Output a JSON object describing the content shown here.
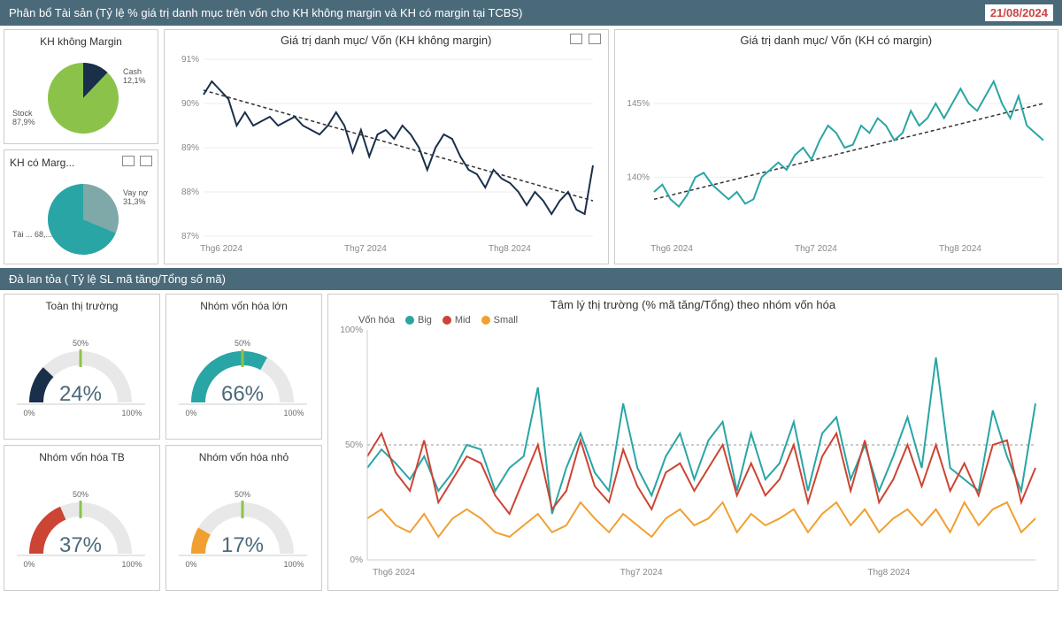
{
  "header1": {
    "title": "Phân bổ Tài sản (Tỷ lệ % giá trị danh mục trên vốn cho KH không margin và KH có margin tại TCBS)",
    "date": "21/08/2024"
  },
  "header2": {
    "title": "Đà lan tỏa ( Tỷ lệ SL mã tăng/Tổng số mã)"
  },
  "pie1": {
    "title": "KH không Margin",
    "slices": [
      {
        "label": "Cash",
        "value": 12.1,
        "color": "#1a2f4a",
        "labelText": "Cash\n12,1%"
      },
      {
        "label": "Stock",
        "value": 87.9,
        "color": "#8bc34a",
        "labelText": "Stock\n87,9%"
      }
    ]
  },
  "pie2": {
    "title": "KH có Marg...",
    "slices": [
      {
        "label": "Vay nợ",
        "value": 31.3,
        "color": "#7fa8a8",
        "labelText": "Vay nợ\n31,3%"
      },
      {
        "label": "Tài ...",
        "value": 68.7,
        "color": "#2aa5a5",
        "labelText": "Tài ... 68,..."
      }
    ]
  },
  "line1": {
    "title": "Giá trị danh mục/ Vốn (KH không margin)",
    "color": "#1a2f4a",
    "trend_color": "#333",
    "ylim": [
      87,
      91
    ],
    "yticks": [
      "87%",
      "88%",
      "89%",
      "90%",
      "91%"
    ],
    "xticks": [
      "Thg6 2024",
      "Thg7 2024",
      "Thg8 2024"
    ],
    "data": [
      90.2,
      90.5,
      90.3,
      90.1,
      89.5,
      89.8,
      89.5,
      89.6,
      89.7,
      89.5,
      89.6,
      89.7,
      89.5,
      89.4,
      89.3,
      89.5,
      89.8,
      89.5,
      88.9,
      89.4,
      88.8,
      89.3,
      89.4,
      89.2,
      89.5,
      89.3,
      89.0,
      88.5,
      89.0,
      89.3,
      89.2,
      88.8,
      88.5,
      88.4,
      88.1,
      88.5,
      88.3,
      88.2,
      88.0,
      87.7,
      88.0,
      87.8,
      87.5,
      87.8,
      88.0,
      87.6,
      87.5,
      88.6
    ],
    "trend": [
      90.3,
      87.8
    ]
  },
  "line2": {
    "title": "Giá trị danh mục/ Vốn (KH có margin)",
    "color": "#2aa5a5",
    "trend_color": "#333",
    "ylim": [
      136,
      148
    ],
    "yticks": [
      "140%",
      "145%"
    ],
    "ytick_positions": [
      140,
      145
    ],
    "xticks": [
      "Thg6 2024",
      "Thg7 2024",
      "Thg8 2024"
    ],
    "data": [
      139,
      139.5,
      138.5,
      138,
      138.8,
      140,
      140.3,
      139.5,
      139,
      138.5,
      139,
      138.2,
      138.5,
      140,
      140.5,
      141,
      140.5,
      141.5,
      142,
      141.2,
      142.5,
      143.5,
      143,
      142,
      142.2,
      143.5,
      143,
      144,
      143.5,
      142.5,
      143,
      144.5,
      143.5,
      144,
      145,
      144,
      145,
      146,
      145,
      144.5,
      145.5,
      146.5,
      145,
      144,
      145.5,
      143.5,
      143,
      142.5
    ],
    "trend": [
      138.5,
      145
    ]
  },
  "gauges": [
    {
      "title": "Toàn thị trường",
      "value": 24,
      "display": "24%",
      "color": "#1a2f4a"
    },
    {
      "title": "Nhóm vốn hóa lớn",
      "value": 66,
      "display": "66%",
      "color": "#2aa5a5"
    },
    {
      "title": "Nhóm vốn hóa TB",
      "value": 37,
      "display": "37%",
      "color": "#c43"
    },
    {
      "title": "Nhóm vốn hóa nhỏ",
      "value": 17,
      "display": "17%",
      "color": "#f0a030"
    }
  ],
  "gauge_axis": {
    "min": "0%",
    "mid": "50%",
    "max": "100%"
  },
  "multiline": {
    "title": "Tâm lý thị trường (% mã tăng/Tổng) theo nhóm vốn hóa",
    "legend_title": "Vốn hóa",
    "ylim": [
      0,
      100
    ],
    "yticks": [
      "0%",
      "50%",
      "100%"
    ],
    "xticks": [
      "Thg6 2024",
      "Thg7 2024",
      "Thg8 2024"
    ],
    "ref_line": 50,
    "series": [
      {
        "name": "Big",
        "color": "#2aa5a5",
        "data": [
          40,
          48,
          42,
          35,
          45,
          30,
          38,
          50,
          48,
          30,
          40,
          45,
          75,
          20,
          40,
          55,
          38,
          30,
          68,
          40,
          28,
          45,
          55,
          35,
          52,
          60,
          30,
          55,
          35,
          42,
          60,
          30,
          55,
          62,
          35,
          50,
          30,
          45,
          62,
          40,
          88,
          40,
          35,
          30,
          65,
          45,
          30,
          68
        ]
      },
      {
        "name": "Mid",
        "color": "#c43",
        "data": [
          45,
          55,
          38,
          30,
          52,
          25,
          35,
          45,
          42,
          28,
          20,
          35,
          50,
          22,
          30,
          52,
          32,
          25,
          48,
          32,
          22,
          38,
          42,
          30,
          40,
          50,
          28,
          42,
          28,
          35,
          50,
          25,
          45,
          55,
          30,
          52,
          25,
          35,
          50,
          32,
          50,
          30,
          42,
          28,
          50,
          52,
          25,
          40
        ]
      },
      {
        "name": "Small",
        "color": "#f0a030",
        "data": [
          18,
          22,
          15,
          12,
          20,
          10,
          18,
          22,
          18,
          12,
          10,
          15,
          20,
          12,
          15,
          25,
          18,
          12,
          20,
          15,
          10,
          18,
          22,
          15,
          18,
          25,
          12,
          20,
          15,
          18,
          22,
          12,
          20,
          25,
          15,
          22,
          12,
          18,
          22,
          15,
          22,
          12,
          25,
          15,
          22,
          25,
          12,
          18
        ]
      }
    ]
  },
  "colors": {
    "header_bg": "#4a6a7a",
    "grid": "#e5e5e5"
  }
}
